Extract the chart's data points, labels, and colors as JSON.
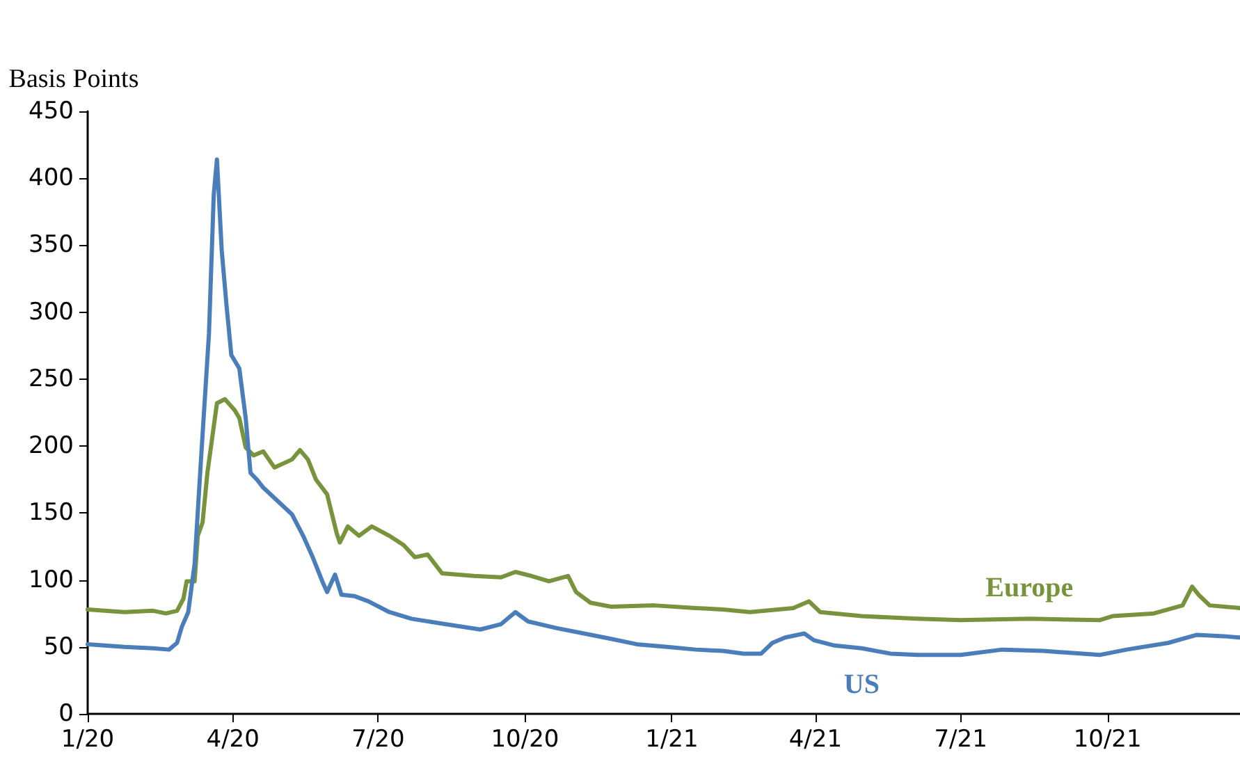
{
  "chart_data": {
    "type": "line",
    "ylabel": "Basis Points",
    "xlim": [
      "2020-01-01",
      "2021-12-23"
    ],
    "xticks": [
      {
        "value": "2020-01-01",
        "label": "1/20"
      },
      {
        "value": "2020-04-01",
        "label": "4/20"
      },
      {
        "value": "2020-07-01",
        "label": "7/20"
      },
      {
        "value": "2020-10-01",
        "label": "10/20"
      },
      {
        "value": "2021-01-01",
        "label": "1/21"
      },
      {
        "value": "2021-04-01",
        "label": "4/21"
      },
      {
        "value": "2021-07-01",
        "label": "7/21"
      },
      {
        "value": "2021-10-01",
        "label": "10/21"
      }
    ],
    "ylim": [
      0,
      450
    ],
    "yticks": [
      0,
      50,
      100,
      150,
      200,
      250,
      300,
      350,
      400,
      450
    ],
    "grid": false,
    "legend": false,
    "marker": "none",
    "line_style": "solid",
    "series": [
      {
        "name": "Europe",
        "color": "#77933c",
        "x": [
          "2020-01-01",
          "2020-01-24",
          "2020-02-11",
          "2020-02-19",
          "2020-02-26",
          "2020-03-01",
          "2020-03-03",
          "2020-03-08",
          "2020-03-10",
          "2020-03-13",
          "2020-03-16",
          "2020-03-19",
          "2020-03-22",
          "2020-03-27",
          "2020-04-02",
          "2020-04-05",
          "2020-04-09",
          "2020-04-14",
          "2020-04-20",
          "2020-04-27",
          "2020-05-08",
          "2020-05-13",
          "2020-05-18",
          "2020-05-23",
          "2020-05-30",
          "2020-06-05",
          "2020-06-07",
          "2020-06-12",
          "2020-06-19",
          "2020-06-27",
          "2020-07-08",
          "2020-07-17",
          "2020-07-24",
          "2020-08-01",
          "2020-08-10",
          "2020-08-30",
          "2020-09-16",
          "2020-09-25",
          "2020-10-05",
          "2020-10-16",
          "2020-10-28",
          "2020-11-02",
          "2020-11-11",
          "2020-11-24",
          "2020-12-21",
          "2021-01-16",
          "2021-02-02",
          "2021-02-19",
          "2021-03-18",
          "2021-03-28",
          "2021-04-04",
          "2021-04-30",
          "2021-06-04",
          "2021-07-01",
          "2021-08-13",
          "2021-09-26",
          "2021-10-04",
          "2021-10-30",
          "2021-11-17",
          "2021-11-23",
          "2021-11-27",
          "2021-12-04",
          "2021-12-23"
        ],
        "values": [
          78,
          76,
          77,
          75,
          77,
          86,
          99,
          99,
          133,
          143,
          180,
          206,
          232,
          235,
          227,
          221,
          199,
          193,
          196,
          184,
          190,
          197,
          190,
          175,
          164,
          135,
          128,
          140,
          133,
          140,
          133,
          126,
          117,
          119,
          105,
          103,
          102,
          106,
          103,
          99,
          103,
          91,
          83,
          80,
          81,
          79,
          78,
          76,
          79,
          84,
          76,
          73,
          71,
          70,
          71,
          70,
          73,
          75,
          81,
          95,
          89,
          81,
          79
        ]
      },
      {
        "name": "US",
        "color": "#4a7ebb",
        "x": [
          "2020-01-01",
          "2020-01-24",
          "2020-02-11",
          "2020-02-21",
          "2020-02-26",
          "2020-02-29",
          "2020-03-04",
          "2020-03-08",
          "2020-03-12",
          "2020-03-17",
          "2020-03-20",
          "2020-03-22",
          "2020-03-25",
          "2020-03-28",
          "2020-03-31",
          "2020-04-05",
          "2020-04-09",
          "2020-04-12",
          "2020-04-16",
          "2020-04-20",
          "2020-04-29",
          "2020-05-08",
          "2020-05-15",
          "2020-05-21",
          "2020-05-27",
          "2020-05-30",
          "2020-06-04",
          "2020-06-08",
          "2020-06-16",
          "2020-06-25",
          "2020-07-08",
          "2020-07-22",
          "2020-08-12",
          "2020-09-03",
          "2020-09-16",
          "2020-09-25",
          "2020-10-03",
          "2020-10-21",
          "2020-11-07",
          "2020-11-24",
          "2020-12-10",
          "2020-12-29",
          "2021-01-16",
          "2021-02-02",
          "2021-02-15",
          "2021-02-26",
          "2021-03-05",
          "2021-03-13",
          "2021-03-25",
          "2021-03-31",
          "2021-04-13",
          "2021-04-30",
          "2021-05-18",
          "2021-06-04",
          "2021-07-01",
          "2021-07-27",
          "2021-08-22",
          "2021-09-26",
          "2021-10-13",
          "2021-11-08",
          "2021-11-26",
          "2021-12-13",
          "2021-12-23"
        ],
        "values": [
          52,
          50,
          49,
          48,
          53,
          65,
          76,
          112,
          190,
          284,
          388,
          414,
          346,
          305,
          268,
          258,
          221,
          180,
          175,
          169,
          159,
          149,
          133,
          117,
          99,
          91,
          104,
          89,
          88,
          84,
          76,
          71,
          67,
          63,
          67,
          76,
          69,
          64,
          60,
          56,
          52,
          50,
          48,
          47,
          45,
          45,
          53,
          57,
          60,
          55,
          51,
          49,
          45,
          44,
          44,
          48,
          47,
          44,
          48,
          53,
          59,
          58,
          57
        ]
      }
    ]
  }
}
